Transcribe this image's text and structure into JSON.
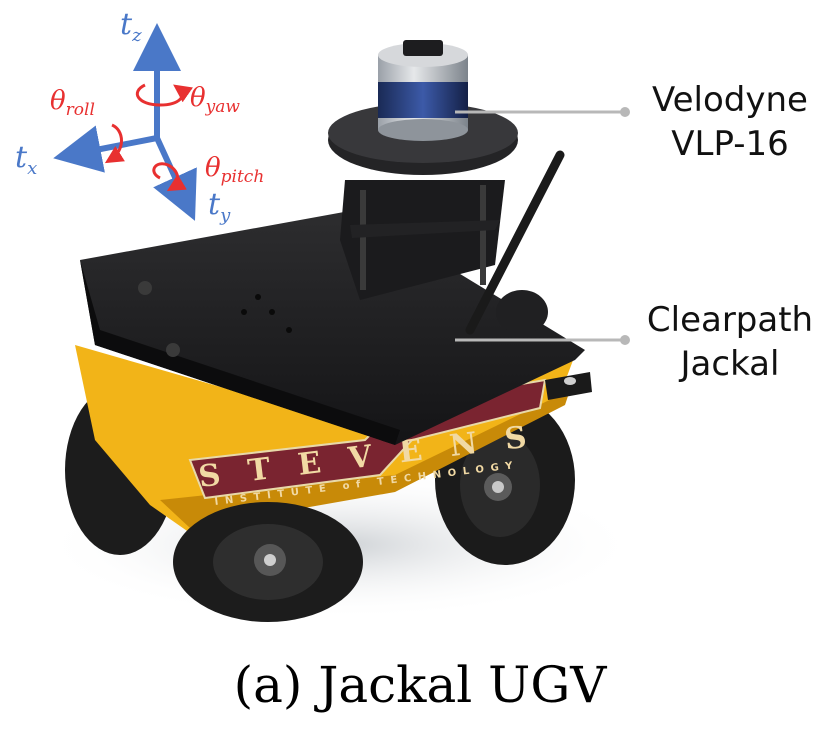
{
  "axes": {
    "tz": {
      "symbol": "t",
      "sub": "z"
    },
    "tx": {
      "symbol": "t",
      "sub": "x"
    },
    "ty": {
      "symbol": "t",
      "sub": "y"
    },
    "roll": {
      "symbol": "θ",
      "sub": "roll"
    },
    "yaw": {
      "symbol": "θ",
      "sub": "yaw"
    },
    "pitch": {
      "symbol": "θ",
      "sub": "pitch"
    }
  },
  "callouts": {
    "lidar": {
      "line1": "Velodyne",
      "line2": "VLP-16"
    },
    "robot": {
      "line1": "Clearpath",
      "line2": "Jackal"
    }
  },
  "robot_decal": {
    "brand": "STEVENS",
    "subline": "INSTITUTE of TECHNOLOGY"
  },
  "caption": "(a) Jackal UGV",
  "colors": {
    "axis": "#4a78c8",
    "rotation": "#e83030",
    "chassis_yellow": "#f2b418",
    "callout_line": "#b8b8b8"
  }
}
